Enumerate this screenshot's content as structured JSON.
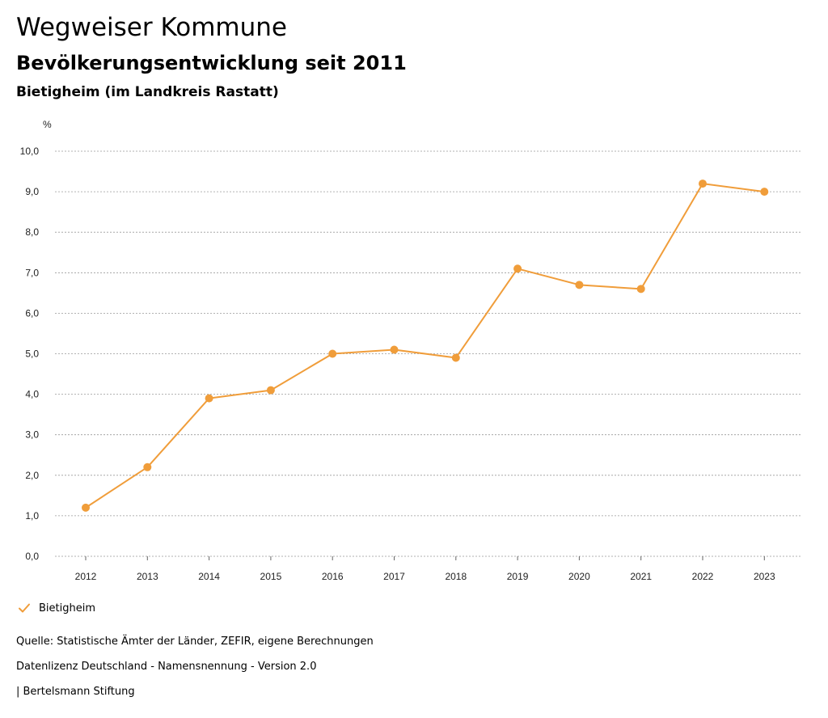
{
  "header": {
    "title": "Wegweiser Kommune",
    "subtitle": "Bevölkerungsentwicklung seit 2011",
    "region": "Bietigheim (im Landkreis Rastatt)"
  },
  "chart_data": {
    "type": "line",
    "title": "Bevölkerungsentwicklung seit 2011",
    "ylabel": "%",
    "xlabel": "",
    "categories": [
      "2012",
      "2013",
      "2014",
      "2015",
      "2016",
      "2017",
      "2018",
      "2019",
      "2020",
      "2021",
      "2022",
      "2023"
    ],
    "series": [
      {
        "name": "Bietigheim",
        "values": [
          1.2,
          2.2,
          3.9,
          4.1,
          5.0,
          5.1,
          4.9,
          7.1,
          6.7,
          6.6,
          9.2,
          9.0
        ]
      }
    ],
    "ylim": [
      0,
      10
    ],
    "yticks": [
      "0,0",
      "1,0",
      "2,0",
      "3,0",
      "4,0",
      "5,0",
      "6,0",
      "7,0",
      "8,0",
      "9,0",
      "10,0"
    ],
    "grid": true,
    "legend": "bottom-left",
    "color": "#F09D3A"
  },
  "legend": {
    "label": "Bietigheim"
  },
  "footer": {
    "source": "Quelle: Statistische Ämter der Länder, ZEFIR, eigene Berechnungen",
    "license": "Datenlizenz Deutschland - Namensnennung - Version 2.0",
    "publisher": "| Bertelsmann Stiftung"
  }
}
